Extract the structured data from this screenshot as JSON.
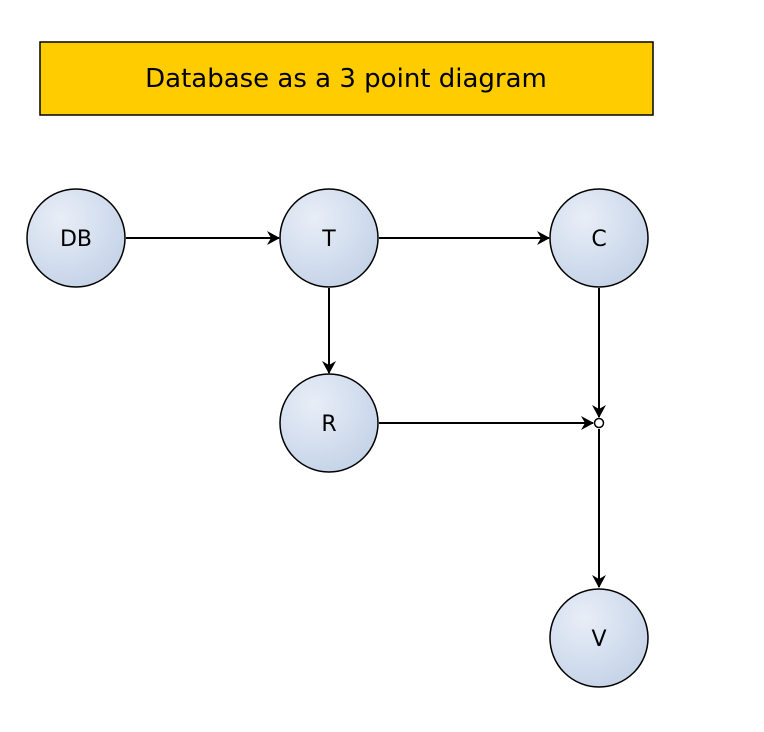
{
  "title": "Database as a 3 point diagram",
  "colors": {
    "title_fill": "#FFCC00",
    "node_fill_light": "#E8EEF7",
    "node_fill_dark": "#C5D3E8",
    "stroke": "#000000"
  },
  "nodes": [
    {
      "id": "db",
      "label": "DB"
    },
    {
      "id": "t",
      "label": "T"
    },
    {
      "id": "c",
      "label": "C"
    },
    {
      "id": "r",
      "label": "R"
    },
    {
      "id": "v",
      "label": "V"
    }
  ],
  "edges": [
    {
      "from": "db",
      "to": "t"
    },
    {
      "from": "t",
      "to": "c"
    },
    {
      "from": "t",
      "to": "r"
    },
    {
      "from": "c",
      "to": "junction"
    },
    {
      "from": "r",
      "to": "junction"
    },
    {
      "from": "junction",
      "to": "v"
    }
  ]
}
